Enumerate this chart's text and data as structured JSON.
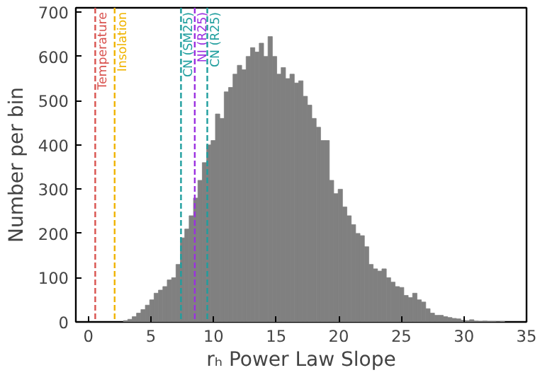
{
  "chart_data": {
    "type": "histogram",
    "xlabel": "rₕ Power Law Slope",
    "ylabel": "Number per bin",
    "bins": [
      2.8,
      3.15,
      3.5,
      3.85,
      4.2,
      4.55,
      4.9,
      5.25,
      5.6,
      5.95,
      6.3,
      6.65,
      7.0,
      7.35,
      7.7,
      8.05,
      8.4,
      8.75,
      9.1,
      9.45,
      9.8,
      10.15,
      10.5,
      10.85,
      11.2,
      11.55,
      11.9,
      12.25,
      12.6,
      12.95,
      13.3,
      13.65,
      14.0,
      14.35,
      14.7,
      15.05,
      15.4,
      15.75,
      16.1,
      16.45,
      16.8,
      17.15,
      17.5,
      17.85,
      18.2,
      18.55,
      18.9,
      19.25,
      19.6,
      19.95,
      20.3,
      20.65,
      21.0,
      21.35,
      21.7,
      22.05,
      22.4,
      22.75,
      23.1,
      23.45,
      23.8,
      24.15,
      24.5,
      24.85,
      25.2,
      25.55,
      25.9,
      26.25,
      26.6,
      26.95,
      27.3,
      27.65,
      28.0,
      28.35,
      28.7,
      29.05,
      29.4,
      29.75,
      30.1,
      30.45,
      30.8,
      31.15,
      31.5,
      31.85,
      32.2,
      32.55,
      32.9,
      33.25
    ],
    "values": [
      3,
      6,
      12,
      20,
      28,
      38,
      50,
      65,
      72,
      80,
      95,
      100,
      130,
      190,
      210,
      240,
      280,
      320,
      360,
      400,
      410,
      470,
      460,
      520,
      530,
      560,
      580,
      570,
      600,
      620,
      610,
      630,
      600,
      645,
      600,
      560,
      575,
      550,
      560,
      540,
      545,
      510,
      490,
      460,
      440,
      410,
      410,
      320,
      290,
      300,
      260,
      240,
      220,
      200,
      195,
      170,
      130,
      120,
      115,
      120,
      100,
      90,
      80,
      78,
      60,
      55,
      65,
      50,
      45,
      30,
      20,
      15,
      15,
      12,
      10,
      8,
      7,
      4,
      3,
      5,
      2,
      1,
      2,
      1,
      1,
      0,
      1
    ],
    "color": "#808080",
    "xlim": [
      -1,
      35
    ],
    "xticks": [
      0,
      5,
      10,
      15,
      20,
      25,
      30,
      35
    ],
    "ylim": [
      0,
      710
    ],
    "yticks": [
      0,
      100,
      200,
      300,
      400,
      500,
      600,
      700
    ],
    "grid": false,
    "ref_lines": [
      {
        "axis": "x",
        "value": 0.55,
        "label": "Temperature",
        "color": "#d9534f",
        "line_style": "dashed"
      },
      {
        "axis": "x",
        "value": 2.1,
        "label": "Insolation",
        "color": "#f0b400",
        "line_style": "dashed"
      },
      {
        "axis": "x",
        "value": 7.4,
        "label": "CN (SM25)",
        "color": "#1f9e9e",
        "line_style": "dashed"
      },
      {
        "axis": "x",
        "value": 8.5,
        "label": "NI (R25)",
        "color": "#9b30e0",
        "line_style": "dashed"
      },
      {
        "axis": "x",
        "value": 9.5,
        "label": "CN (R25)",
        "color": "#1f9e9e",
        "line_style": "dashed"
      }
    ]
  }
}
